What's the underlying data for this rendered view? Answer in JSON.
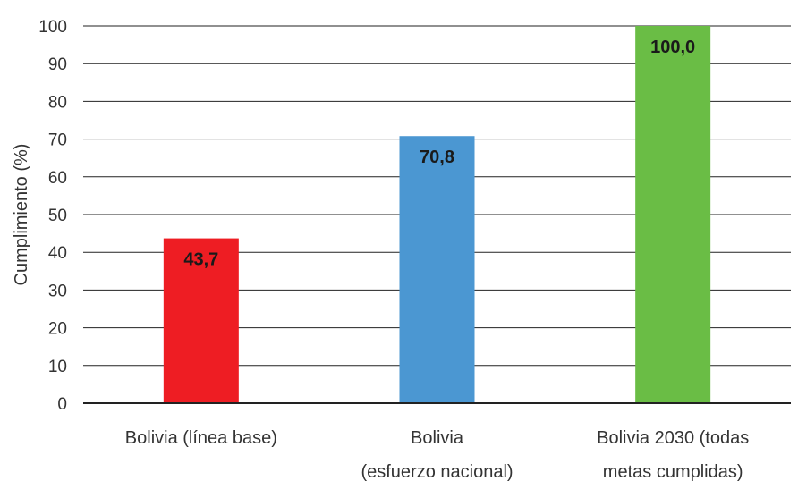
{
  "chart_data": {
    "type": "bar",
    "categories": [
      [
        "Bolivia (línea base)"
      ],
      [
        "Bolivia",
        "(esfuerzo nacional)"
      ],
      [
        "Bolivia 2030 (todas",
        "metas cumplidas)"
      ]
    ],
    "values": [
      43.7,
      70.8,
      100.0
    ],
    "value_labels": [
      "43,7",
      "70,8",
      "100,0"
    ],
    "colors": [
      "#ee1d23",
      "#4b97d2",
      "#6abd45"
    ],
    "ylabel": "Cumplimiento (%)",
    "ylim": [
      0,
      100
    ],
    "yticks": [
      0,
      10,
      20,
      30,
      40,
      50,
      60,
      70,
      80,
      90,
      100
    ],
    "grid": true,
    "legend": "none"
  }
}
